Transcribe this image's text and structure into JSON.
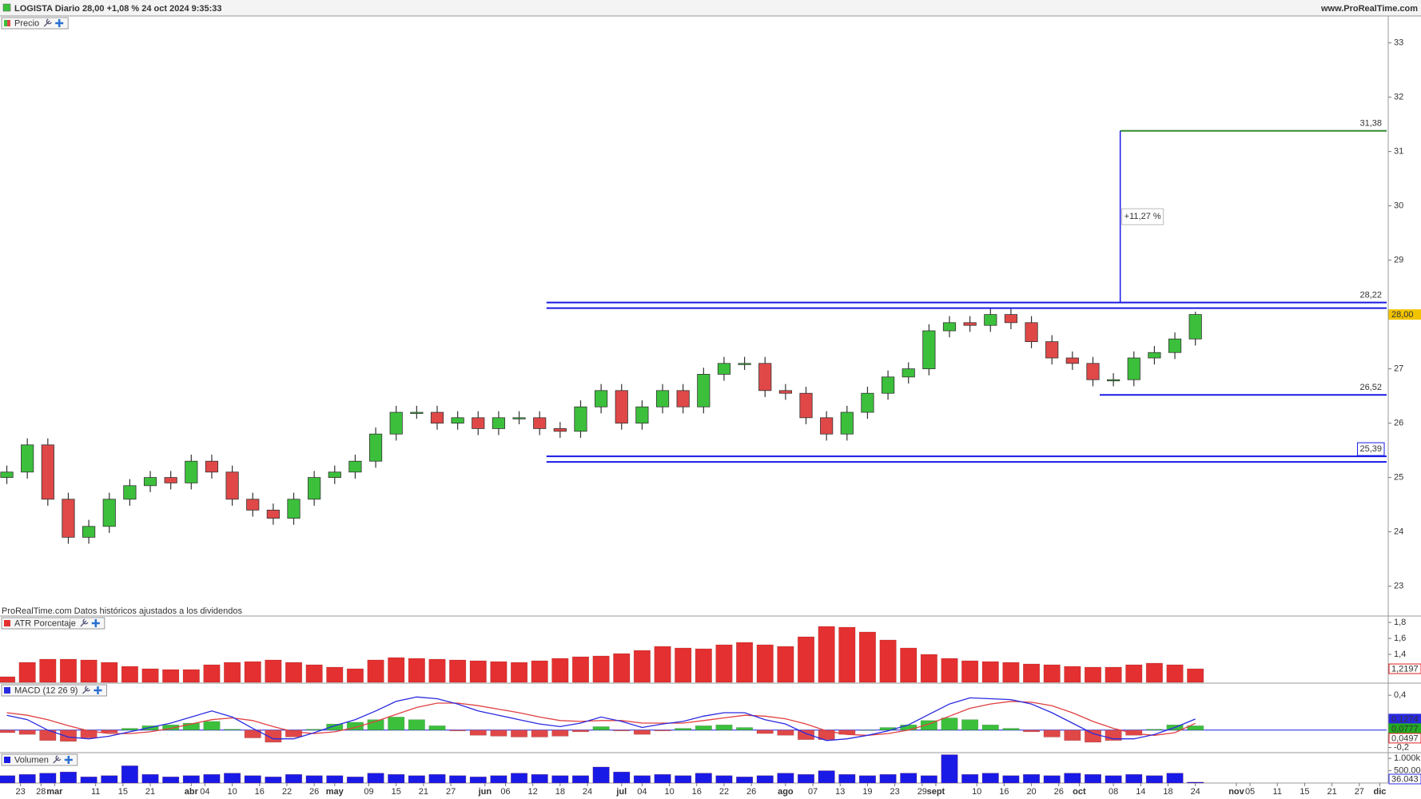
{
  "header": {
    "title": "LOGISTA Diario 28,00 +1,08 % 24 oct 2024 9:35:33",
    "site": "www.ProRealTime.com"
  },
  "chart_data": [
    {
      "type": "candlestick",
      "title": "Precio",
      "note": "ProRealTime.com Datos históricos ajustados a los dividendos",
      "up_color": "#3cc03c",
      "down_color": "#e04848",
      "x": [
        0,
        3,
        6,
        9,
        12,
        15,
        18,
        21,
        24,
        27,
        30,
        33,
        36,
        39,
        42,
        45,
        48,
        51,
        54,
        57,
        60,
        63,
        66,
        69,
        72,
        75,
        78,
        81,
        84,
        87,
        90,
        93,
        96,
        99,
        102,
        105,
        108,
        111,
        114,
        117,
        120,
        123,
        126,
        129,
        132,
        135,
        138,
        141,
        144,
        147,
        150,
        153,
        156,
        159,
        162,
        165,
        168,
        171,
        174
      ],
      "open": [
        25.0,
        25.1,
        25.6,
        24.6,
        23.9,
        24.1,
        24.6,
        24.85,
        25.0,
        24.9,
        25.3,
        25.1,
        24.6,
        24.4,
        24.25,
        24.6,
        25.0,
        25.1,
        25.3,
        25.8,
        26.2,
        26.2,
        26.0,
        26.1,
        25.9,
        26.1,
        26.1,
        25.9,
        25.85,
        26.3,
        26.6,
        26.0,
        26.3,
        26.6,
        26.3,
        26.9,
        27.1,
        27.1,
        26.6,
        26.55,
        26.1,
        25.8,
        26.2,
        26.55,
        26.85,
        27.0,
        27.7,
        27.85,
        27.8,
        28.0,
        27.85,
        27.5,
        27.2,
        27.1,
        26.8,
        26.8,
        27.2,
        27.3,
        27.55
      ],
      "high": [
        25.22,
        25.72,
        25.72,
        24.72,
        24.22,
        24.72,
        24.97,
        25.12,
        25.12,
        25.42,
        25.42,
        25.22,
        24.72,
        24.52,
        24.72,
        25.12,
        25.22,
        25.42,
        25.92,
        26.32,
        26.32,
        26.32,
        26.22,
        26.22,
        26.22,
        26.22,
        26.22,
        26.02,
        26.42,
        26.72,
        26.72,
        26.42,
        26.72,
        26.72,
        27.02,
        27.22,
        27.22,
        27.22,
        26.72,
        26.67,
        26.22,
        26.32,
        26.67,
        26.97,
        27.12,
        27.82,
        27.97,
        27.97,
        28.12,
        28.12,
        27.97,
        27.62,
        27.32,
        27.22,
        26.92,
        27.32,
        27.42,
        27.67,
        28.05
      ],
      "low": [
        24.88,
        24.98,
        24.48,
        23.78,
        23.78,
        23.98,
        24.48,
        24.73,
        24.78,
        24.78,
        24.98,
        24.48,
        24.28,
        24.13,
        24.13,
        24.48,
        24.88,
        24.98,
        25.18,
        25.68,
        26.08,
        25.88,
        25.88,
        25.78,
        25.78,
        25.98,
        25.78,
        25.73,
        25.73,
        26.18,
        25.88,
        25.88,
        26.18,
        26.18,
        26.18,
        26.78,
        26.98,
        26.48,
        26.43,
        25.98,
        25.68,
        25.68,
        26.08,
        26.43,
        26.73,
        26.88,
        27.58,
        27.68,
        27.68,
        27.73,
        27.38,
        27.08,
        26.98,
        26.68,
        26.68,
        26.68,
        27.08,
        27.18,
        27.43
      ],
      "close": [
        25.1,
        25.6,
        24.6,
        23.9,
        24.1,
        24.6,
        24.85,
        25.0,
        24.9,
        25.3,
        25.1,
        24.6,
        24.4,
        24.25,
        24.6,
        25.0,
        25.1,
        25.3,
        25.8,
        26.2,
        26.2,
        26.0,
        26.1,
        25.9,
        26.1,
        26.1,
        25.9,
        25.85,
        26.3,
        26.6,
        26.0,
        26.3,
        26.6,
        26.3,
        26.9,
        27.1,
        27.1,
        26.6,
        26.55,
        26.1,
        25.8,
        26.2,
        26.55,
        26.85,
        27.0,
        27.7,
        27.85,
        27.8,
        28.0,
        27.85,
        27.5,
        27.2,
        27.1,
        26.8,
        26.8,
        27.2,
        27.3,
        27.55,
        28.0
      ],
      "xlim": [
        -1,
        202
      ],
      "ylim": [
        22.45,
        33.48
      ],
      "yticks": [
        23,
        24,
        25,
        26,
        27,
        28,
        29,
        30,
        31,
        32,
        33
      ],
      "levels": [
        {
          "value": 31.38,
          "label": "31,38",
          "color": "#2e8b2e",
          "x_start": 163
        },
        {
          "value": 28.22,
          "label": "28,22",
          "color": "#1a1ae6",
          "x_start": 79,
          "double": true
        },
        {
          "value": 26.52,
          "label": "26,52",
          "color": "#1a1ae6",
          "x_start": 160
        },
        {
          "value": 25.39,
          "label": "25,39",
          "color": "#1a1ae6",
          "x_start": 79,
          "double": true,
          "boxed": true
        }
      ],
      "measure": {
        "x": 163,
        "label": "+11,27 %"
      },
      "tags": [
        {
          "value": 28.0,
          "label": "28,00",
          "color": "#f2c400",
          "text_color": "#000000",
          "filled": true
        }
      ]
    },
    {
      "type": "bar",
      "title": "ATR Porcentaje",
      "color": "#e43030",
      "legend_color": "#e43030",
      "x": [
        0,
        3,
        6,
        9,
        12,
        15,
        18,
        21,
        24,
        27,
        30,
        33,
        36,
        39,
        42,
        45,
        48,
        51,
        54,
        57,
        60,
        63,
        66,
        69,
        72,
        75,
        78,
        81,
        84,
        87,
        90,
        93,
        96,
        99,
        102,
        105,
        108,
        111,
        114,
        117,
        120,
        123,
        126,
        129,
        132,
        135,
        138,
        141,
        144,
        147,
        150,
        153,
        156,
        159,
        162,
        165,
        168,
        171,
        174
      ],
      "values": [
        1.12,
        1.3,
        1.34,
        1.34,
        1.33,
        1.3,
        1.25,
        1.22,
        1.21,
        1.21,
        1.27,
        1.3,
        1.31,
        1.33,
        1.3,
        1.27,
        1.24,
        1.22,
        1.33,
        1.36,
        1.35,
        1.34,
        1.33,
        1.32,
        1.31,
        1.3,
        1.32,
        1.35,
        1.37,
        1.38,
        1.41,
        1.45,
        1.5,
        1.48,
        1.47,
        1.52,
        1.55,
        1.52,
        1.5,
        1.62,
        1.75,
        1.74,
        1.68,
        1.58,
        1.48,
        1.4,
        1.35,
        1.32,
        1.31,
        1.3,
        1.28,
        1.27,
        1.25,
        1.24,
        1.24,
        1.27,
        1.29,
        1.27,
        1.2197
      ],
      "xlim": [
        -1,
        202
      ],
      "ylim": [
        1.05,
        1.87
      ],
      "yticks": [
        {
          "value": 1.4,
          "label": "1,4"
        },
        {
          "value": 1.6,
          "label": "1,6"
        },
        {
          "value": 1.8,
          "label": "1,8"
        }
      ],
      "tags": [
        {
          "value": 1.2197,
          "label": "1,2197",
          "color": "#e02020",
          "filled": false
        }
      ]
    },
    {
      "type": "macd",
      "title": "MACD (12 26 9)",
      "macd_color": "#2a2ae0",
      "signal_color": "#e04040",
      "pos_color": "#3cc03c",
      "neg_color": "#e04848",
      "legend_color": "#2a2ae0",
      "x": [
        0,
        3,
        6,
        9,
        12,
        15,
        18,
        21,
        24,
        27,
        30,
        33,
        36,
        39,
        42,
        45,
        48,
        51,
        54,
        57,
        60,
        63,
        66,
        69,
        72,
        75,
        78,
        81,
        84,
        87,
        90,
        93,
        96,
        99,
        102,
        105,
        108,
        111,
        114,
        117,
        120,
        123,
        126,
        129,
        132,
        135,
        138,
        141,
        144,
        147,
        150,
        153,
        156,
        159,
        162,
        165,
        168,
        171,
        174
      ],
      "macd": [
        0.17,
        0.12,
        0.0,
        -0.08,
        -0.1,
        -0.07,
        -0.02,
        0.03,
        0.08,
        0.15,
        0.22,
        0.15,
        0.02,
        -0.1,
        -0.1,
        -0.03,
        0.05,
        0.12,
        0.22,
        0.33,
        0.38,
        0.36,
        0.3,
        0.22,
        0.17,
        0.12,
        0.07,
        0.04,
        0.08,
        0.15,
        0.1,
        0.03,
        0.07,
        0.1,
        0.16,
        0.2,
        0.2,
        0.12,
        0.07,
        -0.04,
        -0.12,
        -0.1,
        -0.06,
        -0.01,
        0.06,
        0.18,
        0.3,
        0.37,
        0.36,
        0.35,
        0.3,
        0.2,
        0.08,
        -0.04,
        -0.1,
        -0.1,
        -0.05,
        0.03,
        0.1274
      ],
      "signal": [
        0.2,
        0.17,
        0.12,
        0.05,
        -0.01,
        -0.04,
        -0.04,
        -0.02,
        0.02,
        0.07,
        0.12,
        0.14,
        0.11,
        0.04,
        -0.02,
        -0.04,
        -0.02,
        0.03,
        0.1,
        0.18,
        0.26,
        0.31,
        0.31,
        0.28,
        0.24,
        0.2,
        0.15,
        0.11,
        0.1,
        0.11,
        0.11,
        0.08,
        0.08,
        0.08,
        0.11,
        0.14,
        0.17,
        0.16,
        0.13,
        0.07,
        -0.01,
        -0.05,
        -0.06,
        -0.04,
        0.0,
        0.07,
        0.16,
        0.25,
        0.3,
        0.33,
        0.32,
        0.28,
        0.2,
        0.1,
        0.02,
        -0.04,
        -0.06,
        -0.03,
        0.0777
      ],
      "histogram": [
        -0.03,
        -0.05,
        -0.12,
        -0.13,
        -0.09,
        -0.03,
        0.02,
        0.05,
        0.06,
        0.08,
        0.1,
        0.01,
        -0.09,
        -0.14,
        -0.08,
        0.01,
        0.07,
        0.09,
        0.12,
        0.15,
        0.12,
        0.05,
        -0.01,
        -0.06,
        -0.07,
        -0.08,
        -0.08,
        -0.07,
        -0.02,
        0.04,
        -0.01,
        -0.05,
        -0.01,
        0.02,
        0.05,
        0.06,
        0.03,
        -0.04,
        -0.06,
        -0.11,
        -0.11,
        -0.05,
        0.0,
        0.03,
        0.06,
        0.11,
        0.14,
        0.12,
        0.06,
        0.02,
        -0.02,
        -0.08,
        -0.12,
        -0.14,
        -0.12,
        -0.06,
        0.01,
        0.06,
        0.0497
      ],
      "xlim": [
        -1,
        202
      ],
      "ylim": [
        -0.25,
        0.53
      ],
      "yticks": [
        {
          "value": -0.2,
          "label": "-0,2"
        },
        {
          "value": 0.4,
          "label": "0,4"
        }
      ],
      "tags": [
        {
          "value": 0.1274,
          "label": "0,1274",
          "color": "#2a2ae0",
          "filled": true
        },
        {
          "value": 0.0777,
          "label": "0,0777",
          "color": "#22aa22",
          "filled": true
        },
        {
          "value": 0.0497,
          "label": "0,0497",
          "color": "#e02020",
          "filled": false
        }
      ]
    },
    {
      "type": "bar",
      "title": "Volumen",
      "color": "#1a1ae6",
      "legend_color": "#1a1ae6",
      "x": [
        0,
        3,
        6,
        9,
        12,
        15,
        18,
        21,
        24,
        27,
        30,
        33,
        36,
        39,
        42,
        45,
        48,
        51,
        54,
        57,
        60,
        63,
        66,
        69,
        72,
        75,
        78,
        81,
        84,
        87,
        90,
        93,
        96,
        99,
        102,
        105,
        108,
        111,
        114,
        117,
        120,
        123,
        126,
        129,
        132,
        135,
        138,
        141,
        144,
        147,
        150,
        153,
        156,
        159,
        162,
        165,
        168,
        171,
        174
      ],
      "values": [
        300000,
        350000,
        400000,
        450000,
        250000,
        300000,
        700000,
        350000,
        250000,
        300000,
        350000,
        400000,
        300000,
        250000,
        350000,
        300000,
        300000,
        250000,
        400000,
        350000,
        300000,
        350000,
        300000,
        250000,
        300000,
        400000,
        350000,
        300000,
        300000,
        650000,
        450000,
        300000,
        350000,
        300000,
        400000,
        300000,
        250000,
        300000,
        400000,
        350000,
        500000,
        350000,
        300000,
        350000,
        400000,
        300000,
        1150000,
        350000,
        400000,
        300000,
        350000,
        300000,
        400000,
        350000,
        300000,
        350000,
        300000,
        400000,
        36043
      ],
      "xlim": [
        -1,
        202
      ],
      "ylim": [
        0,
        1200000
      ],
      "yticks": [
        {
          "value": 500000,
          "label": "500.000"
        },
        {
          "value": 1000000,
          "label": "1.000k"
        }
      ],
      "tags": [
        {
          "value": 36043,
          "label": "36.043",
          "color": "#2a2ae0",
          "filled": false
        }
      ],
      "xticks": [
        {
          "value": 2,
          "label": "23"
        },
        {
          "value": 5,
          "label": "28"
        },
        {
          "value": 7,
          "label": "mar"
        },
        {
          "value": 13,
          "label": "11"
        },
        {
          "value": 17,
          "label": "15"
        },
        21,
        {
          "value": 27,
          "label": "abr"
        },
        {
          "value": 29,
          "label": "04"
        },
        {
          "value": 33,
          "label": "10"
        },
        {
          "value": 37,
          "label": "16"
        },
        {
          "value": 41,
          "label": "22"
        },
        {
          "value": 45,
          "label": "26"
        },
        {
          "value": 48,
          "label": "may"
        },
        {
          "value": 53,
          "label": "09"
        },
        {
          "value": 57,
          "label": "15"
        },
        {
          "value": 61,
          "label": "21"
        },
        {
          "value": 65,
          "label": "27"
        },
        {
          "value": 70,
          "label": "jun"
        },
        {
          "value": 73,
          "label": "06"
        },
        {
          "value": 77,
          "label": "12"
        },
        {
          "value": 81,
          "label": "18"
        },
        {
          "value": 85,
          "label": "24"
        },
        {
          "value": 90,
          "label": "jul"
        },
        {
          "value": 93,
          "label": "04"
        },
        {
          "value": 97,
          "label": "10"
        },
        {
          "value": 101,
          "label": "16"
        },
        {
          "value": 105,
          "label": "22"
        },
        {
          "value": 109,
          "label": "26"
        },
        {
          "value": 114,
          "label": "ago"
        },
        {
          "value": 118,
          "label": "07"
        },
        {
          "value": 122,
          "label": "13"
        },
        {
          "value": 126,
          "label": "19"
        },
        {
          "value": 130,
          "label": "23"
        },
        {
          "value": 134,
          "label": "29"
        },
        {
          "value": 136,
          "label": "sept"
        },
        {
          "value": 142,
          "label": "10"
        },
        {
          "value": 146,
          "label": "16"
        },
        {
          "value": 150,
          "label": "20"
        },
        {
          "value": 154,
          "label": "26"
        },
        {
          "value": 157,
          "label": "oct"
        },
        {
          "value": 162,
          "label": "08"
        },
        {
          "value": 166,
          "label": "14"
        },
        {
          "value": 170,
          "label": "18"
        },
        {
          "value": 174,
          "label": "24"
        },
        {
          "value": 180,
          "label": "nov"
        },
        {
          "value": 182,
          "label": "05"
        },
        {
          "value": 186,
          "label": "11"
        },
        {
          "value": 190,
          "label": "15"
        },
        {
          "value": 194,
          "label": "21"
        },
        {
          "value": 198,
          "label": "27"
        },
        {
          "value": 201,
          "label": "dic"
        }
      ]
    }
  ]
}
